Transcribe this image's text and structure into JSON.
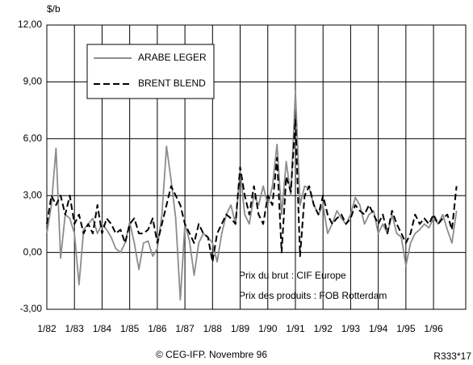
{
  "chart_data": {
    "type": "line",
    "y_label": "$/b",
    "x": [
      0,
      2,
      4,
      6,
      8,
      10,
      12,
      14,
      16,
      18,
      20,
      22,
      24,
      26,
      28,
      30,
      32,
      34,
      36,
      38,
      40,
      42,
      44,
      46,
      48,
      50,
      52,
      54,
      56,
      58,
      60,
      62,
      64,
      66,
      68,
      70,
      72,
      74,
      76,
      78,
      80,
      82,
      84,
      86,
      88,
      90,
      92,
      94,
      96,
      98,
      100,
      102,
      104,
      106,
      108,
      110,
      112,
      114,
      116,
      118,
      120,
      122,
      124,
      126,
      128,
      130,
      132,
      134,
      136,
      138,
      140,
      142,
      144,
      146,
      148,
      150,
      152,
      154,
      156,
      158,
      160,
      162,
      164,
      166,
      168,
      170,
      172,
      174,
      176,
      178
    ],
    "series": [
      {
        "name": "ARABE LEGER",
        "color": "#8c8c8c",
        "style": "solid",
        "values": [
          1.0,
          2.5,
          5.5,
          -0.3,
          2.0,
          1.8,
          1.0,
          -1.7,
          1.2,
          1.5,
          1.8,
          1.0,
          1.5,
          1.2,
          0.8,
          0.2,
          0.0,
          0.5,
          1.6,
          0.5,
          -0.9,
          0.5,
          0.6,
          -0.2,
          0.2,
          2.0,
          5.6,
          3.8,
          1.8,
          -2.5,
          1.5,
          0.6,
          -1.2,
          0.5,
          1.0,
          0.8,
          0.5,
          -0.5,
          1.0,
          2.0,
          2.5,
          1.5,
          4.3,
          2.0,
          1.5,
          3.0,
          2.5,
          3.5,
          2.5,
          3.5,
          5.7,
          2.0,
          4.8,
          3.0,
          8.5,
          2.5,
          3.5,
          3.4,
          2.5,
          2.0,
          2.5,
          1.0,
          1.5,
          2.2,
          1.8,
          1.5,
          2.0,
          2.9,
          2.5,
          1.5,
          2.0,
          2.2,
          1.0,
          1.5,
          1.0,
          2.0,
          1.0,
          0.8,
          -0.7,
          0.5,
          1.0,
          1.2,
          1.5,
          1.3,
          1.8,
          1.5,
          2.0,
          1.2,
          0.5,
          2.2
        ]
      },
      {
        "name": "BRENT BLEND",
        "color": "#000000",
        "style": "dashed",
        "values": [
          1.5,
          3.0,
          2.5,
          3.0,
          2.0,
          3.0,
          1.5,
          2.0,
          1.0,
          1.5,
          1.0,
          2.5,
          1.0,
          1.8,
          1.5,
          1.0,
          1.2,
          0.5,
          1.5,
          1.8,
          1.0,
          1.0,
          1.2,
          1.8,
          0.5,
          1.5,
          2.5,
          3.5,
          3.0,
          2.5,
          1.5,
          1.0,
          0.5,
          1.5,
          1.0,
          0.8,
          -0.5,
          1.0,
          1.5,
          2.0,
          1.8,
          1.5,
          4.5,
          3.0,
          2.0,
          3.5,
          2.0,
          1.5,
          3.0,
          2.5,
          5.0,
          0.0,
          4.0,
          3.2,
          7.0,
          -0.2,
          3.0,
          3.5,
          2.5,
          2.0,
          3.0,
          2.0,
          1.5,
          1.8,
          2.0,
          1.5,
          1.8,
          2.5,
          2.2,
          2.0,
          2.5,
          2.0,
          1.5,
          2.0,
          1.0,
          2.2,
          1.5,
          1.0,
          0.5,
          1.0,
          2.0,
          1.5,
          1.8,
          1.5,
          2.0,
          1.5,
          1.8,
          2.0,
          1.2,
          3.5
        ]
      }
    ],
    "xlim": [
      0,
      182
    ],
    "xticks": [
      {
        "value": 0,
        "label": "1/82"
      },
      {
        "value": 12,
        "label": "1/83"
      },
      {
        "value": 24,
        "label": "1/84"
      },
      {
        "value": 36,
        "label": "1/85"
      },
      {
        "value": 48,
        "label": "1/86"
      },
      {
        "value": 60,
        "label": "1/87"
      },
      {
        "value": 72,
        "label": "1/88"
      },
      {
        "value": 84,
        "label": "1/89"
      },
      {
        "value": 96,
        "label": "1/90"
      },
      {
        "value": 108,
        "label": "1/91"
      },
      {
        "value": 120,
        "label": "1/92"
      },
      {
        "value": 132,
        "label": "1/93"
      },
      {
        "value": 144,
        "label": "1/94"
      },
      {
        "value": 156,
        "label": "1/95"
      },
      {
        "value": 168,
        "label": "1/96"
      }
    ],
    "ylim": [
      -3,
      12
    ],
    "yticks": [
      {
        "value": -3,
        "label": "-3,00"
      },
      {
        "value": 0,
        "label": "0,00"
      },
      {
        "value": 3,
        "label": "3,00"
      },
      {
        "value": 6,
        "label": "6,00"
      },
      {
        "value": 9,
        "label": "9,00"
      },
      {
        "value": 12,
        "label": "12,00"
      }
    ],
    "grid": true,
    "annotations": [
      "Prix du brut : CIF Europe",
      "Prix des produits : FOB Rotterdam"
    ],
    "footer": "© CEG-IFP. Novembre 96",
    "reference": "R333*17"
  }
}
